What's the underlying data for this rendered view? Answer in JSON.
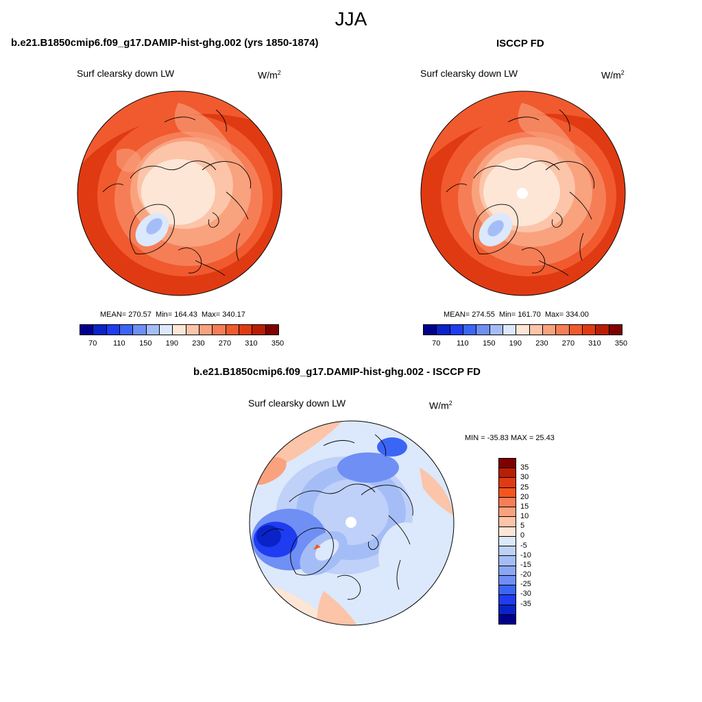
{
  "page": {
    "season": "JJA",
    "left_title": "b.e21.B1850cmip6.f09_g17.DAMIP-hist-ghg.002 (yrs 1850-1874)",
    "right_title": "ISCCP FD",
    "diff_title": "b.e21.B1850cmip6.f09_g17.DAMIP-hist-ghg.002 - ISCCP FD"
  },
  "colors": {
    "abs_palette": [
      "#00008b",
      "#0a23c8",
      "#1f3cf0",
      "#3b65f5",
      "#6f8ff5",
      "#a5bdf7",
      "#dce8fb",
      "#fde6d6",
      "#fcc4a8",
      "#f9a27e",
      "#f67e56",
      "#f05a2e",
      "#e03a12",
      "#b81e06",
      "#7f0000"
    ],
    "diff_palette": [
      "#7f0000",
      "#b81e06",
      "#e03a12",
      "#f4551f",
      "#f67e56",
      "#f9a27e",
      "#fcc4a8",
      "#fde6d6",
      "#dce8fb",
      "#bfd1f8",
      "#a5bdf7",
      "#8aa6f6",
      "#6f8ff5",
      "#3b65f5",
      "#1f3cf0",
      "#0a23c8",
      "#00008b"
    ],
    "coast": "#000000"
  },
  "chart_data": [
    {
      "type": "heatmap",
      "projection": "north polar stereographic",
      "title": "b.e21.B1850cmip6.f09_g17.DAMIP-hist-ghg.002 (yrs 1850-1874)",
      "left_label": "Surf clearsky down LW",
      "units_base": "W/m",
      "units_exp": "2",
      "stats": {
        "mean": "MEAN= 270.57",
        "min": "Min= 164.43",
        "max": "Max= 340.17"
      },
      "colorbar": {
        "orientation": "horizontal",
        "tick_labels": [
          "70",
          "110",
          "150",
          "190",
          "230",
          "270",
          "310",
          "350"
        ]
      }
    },
    {
      "type": "heatmap",
      "projection": "north polar stereographic",
      "title": "ISCCP FD",
      "left_label": "Surf clearsky down LW",
      "units_base": "W/m",
      "units_exp": "2",
      "stats": {
        "mean": "MEAN= 274.55",
        "min": "Min= 161.70",
        "max": "Max= 334.00"
      },
      "colorbar": {
        "orientation": "horizontal",
        "tick_labels": [
          "70",
          "110",
          "150",
          "190",
          "230",
          "270",
          "310",
          "350"
        ]
      }
    },
    {
      "type": "heatmap",
      "projection": "north polar stereographic",
      "title": "b.e21.B1850cmip6.f09_g17.DAMIP-hist-ghg.002 - ISCCP FD",
      "left_label": "Surf clearsky down LW",
      "units_base": "W/m",
      "units_exp": "2",
      "stats": {
        "minmax": "MIN = -35.83 MAX =  25.43"
      },
      "colorbar": {
        "orientation": "vertical",
        "tick_labels": [
          "35",
          "30",
          "25",
          "20",
          "15",
          "10",
          "5",
          "0",
          "-5",
          "-10",
          "-15",
          "-20",
          "-25",
          "-30",
          "-35"
        ]
      }
    }
  ]
}
